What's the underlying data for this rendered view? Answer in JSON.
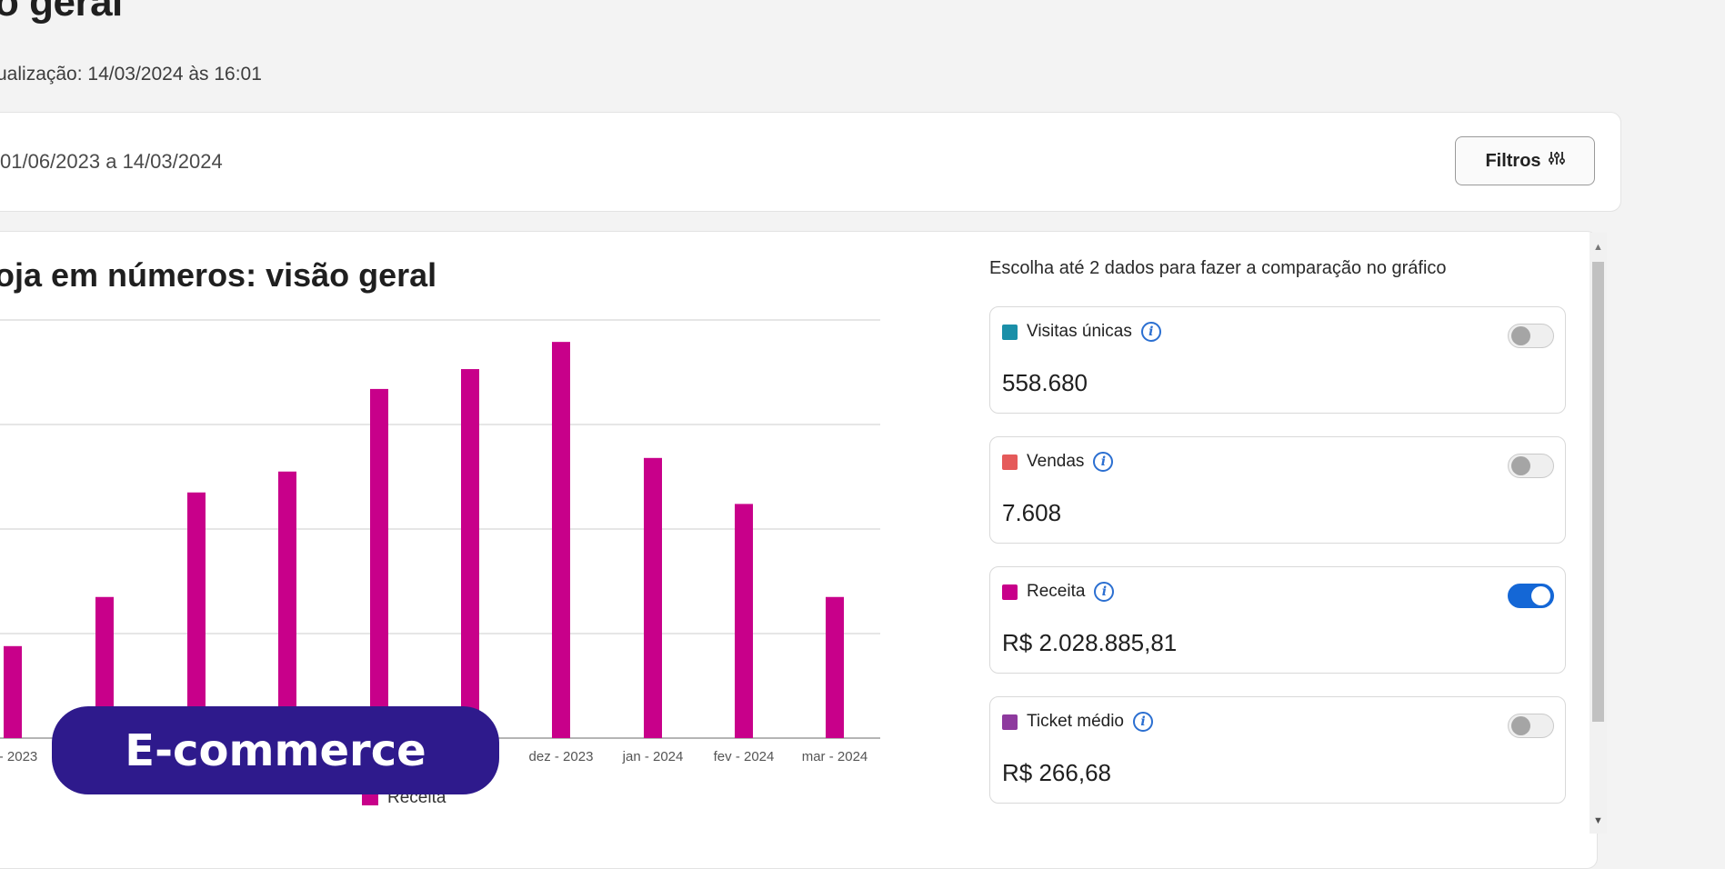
{
  "header": {
    "title": "o geral",
    "updated": "ualização: 14/03/2024 às 16:01"
  },
  "filters": {
    "date_range": "01/06/2023 a 14/03/2024",
    "button_label": "Filtros"
  },
  "chart_section": {
    "title": "oja em números: visão geral"
  },
  "chart_data": {
    "type": "bar",
    "categories": [
      "- 2023",
      "",
      "",
      "",
      "",
      "",
      "dez - 2023",
      "jan - 2024",
      "fev - 2024",
      "mar - 2024"
    ],
    "visible_tick_labels": [
      "- 2023",
      "",
      "",
      "",
      "",
      "",
      "dez - 2023",
      "jan - 2024",
      "fev - 2024",
      "mar - 2024"
    ],
    "series": [
      {
        "name": "Receita",
        "color": "#c8008a",
        "values": [
          88,
          135,
          235,
          255,
          334,
          353,
          379,
          268,
          224,
          135
        ]
      }
    ],
    "ylim": [
      0,
      400
    ],
    "grid": true,
    "legend": "bottom"
  },
  "comparison": {
    "title": "Escolha até 2 dados para fazer a comparação no gráfico",
    "metrics": [
      {
        "label": "Visitas únicas",
        "value": "558.680",
        "color": "#1a8fa8",
        "enabled": false
      },
      {
        "label": "Vendas",
        "value": "7.608",
        "color": "#e55a5a",
        "enabled": false
      },
      {
        "label": "Receita",
        "value": "R$ 2.028.885,81",
        "color": "#c8008a",
        "enabled": true
      },
      {
        "label": "Ticket médio",
        "value": "R$ 266,68",
        "color": "#8e3a9e",
        "enabled": false
      }
    ]
  },
  "badge": {
    "label": "E-commerce"
  },
  "icons": {
    "filter": "sliders-icon",
    "info": "info-icon",
    "toggle": "toggle-switch"
  }
}
